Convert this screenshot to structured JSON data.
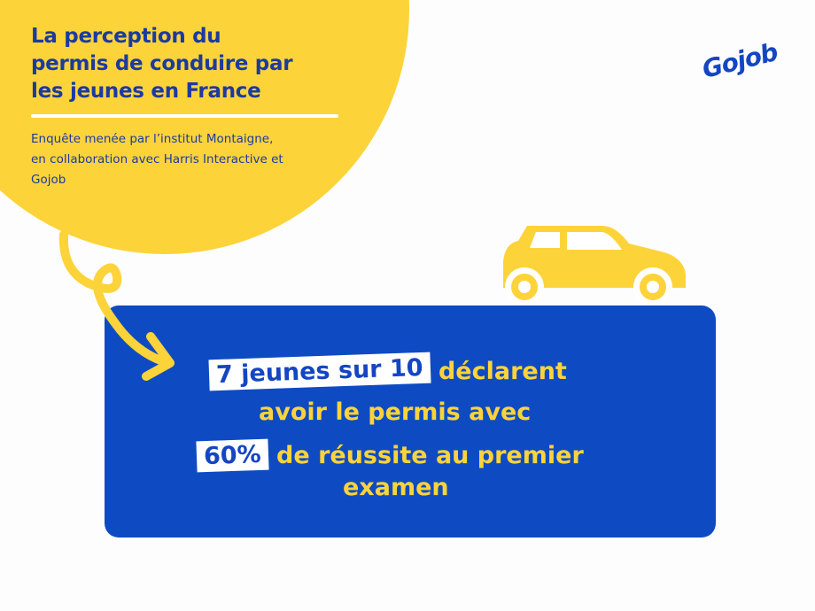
{
  "header": {
    "title_lines": [
      "La perception du",
      "permis de conduire par",
      "les jeunes en France"
    ],
    "subtitle_lines": [
      "Enquête menée par l’institut Montaigne,",
      "en collaboration avec Harris Interactive et",
      "Gojob"
    ]
  },
  "logo": {
    "text": "Gojob"
  },
  "card": {
    "highlight1": "7 jeunes sur 10",
    "text1": "déclarent",
    "text2": "avoir le permis avec",
    "highlight2": "60%",
    "text3": "de réussite au premier",
    "text4": "examen"
  },
  "icons": [
    "car-icon",
    "curly-arrow-icon"
  ],
  "colors": {
    "yellow": "#fdd33a",
    "blue": "#0e4bc3",
    "navy": "#1c3aa0"
  }
}
